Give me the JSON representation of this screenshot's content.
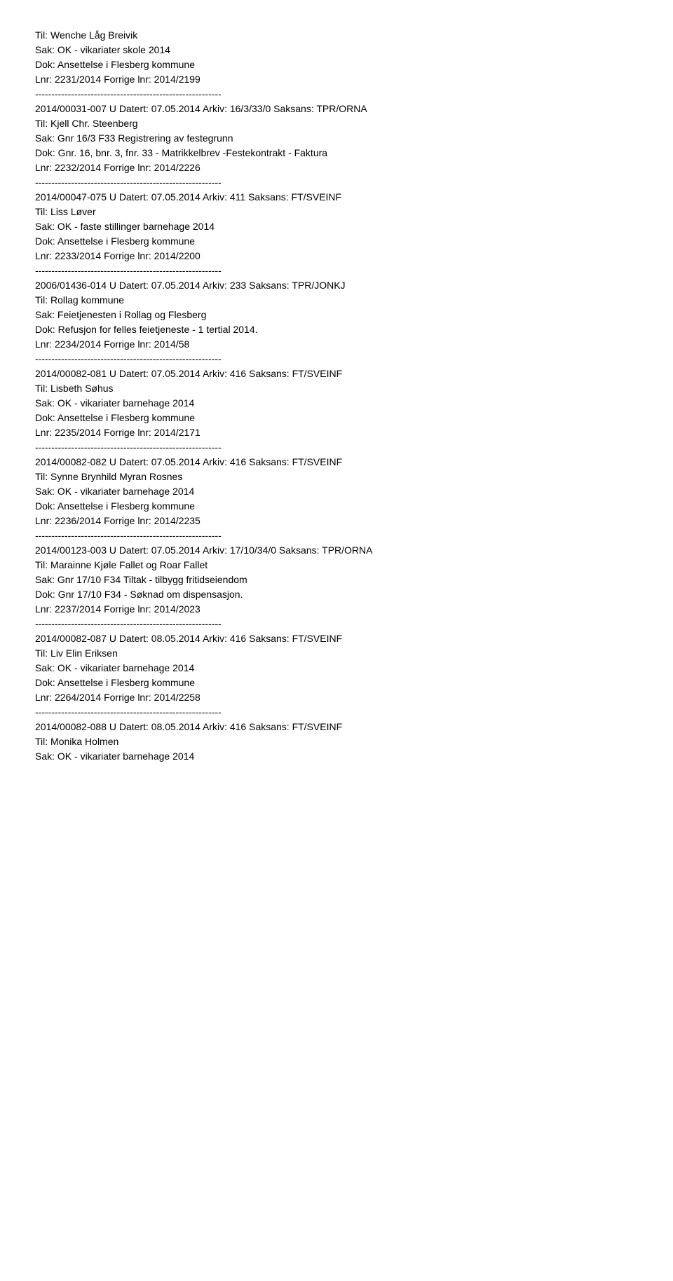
{
  "entries": [
    {
      "lines": [
        "Til: Wenche Låg Breivik",
        "Sak: OK - vikariater skole 2014",
        "Dok: Ansettelse i Flesberg kommune",
        "Lnr: 2231/2014   Forrige lnr: 2014/2199"
      ],
      "separator": "---------------------------------------------------------"
    },
    {
      "header": "2014/00031-007 U   Datert: 07.05.2014   Arkiv: 16/3/33/0   Saksans: TPR/ORNA",
      "lines": [
        "Til: Kjell Chr. Steenberg",
        "Sak: Gnr 16/3 F33 Registrering av festegrunn",
        "Dok: Gnr. 16, bnr. 3, fnr. 33 - Matrikkelbrev  -Festekontrakt - Faktura",
        "Lnr: 2232/2014   Forrige lnr: 2014/2226"
      ],
      "separator": "---------------------------------------------------------"
    },
    {
      "header": "2014/00047-075 U   Datert: 07.05.2014   Arkiv: 411   Saksans: FT/SVEINF",
      "lines": [
        "Til: Liss Løver",
        "Sak: OK - faste stillinger barnehage 2014",
        "Dok: Ansettelse i Flesberg kommune",
        "Lnr: 2233/2014   Forrige lnr: 2014/2200"
      ],
      "separator": "---------------------------------------------------------"
    },
    {
      "header": "2006/01436-014 U   Datert: 07.05.2014   Arkiv: 233   Saksans: TPR/JONKJ",
      "lines": [
        "Til: Rollag kommune",
        "Sak: Feietjenesten i Rollag og Flesberg",
        "Dok: Refusjon for felles feietjeneste - 1 tertial  2014.",
        "Lnr: 2234/2014   Forrige lnr: 2014/58"
      ],
      "separator": "---------------------------------------------------------"
    },
    {
      "header": "2014/00082-081 U   Datert: 07.05.2014   Arkiv: 416   Saksans: FT/SVEINF",
      "lines": [
        "Til: Lisbeth Søhus",
        "Sak: OK - vikariater barnehage 2014",
        "Dok: Ansettelse i Flesberg kommune",
        "Lnr: 2235/2014   Forrige lnr: 2014/2171"
      ],
      "separator": "---------------------------------------------------------"
    },
    {
      "header": "2014/00082-082 U   Datert: 07.05.2014   Arkiv: 416   Saksans: FT/SVEINF",
      "lines": [
        "Til: Synne Brynhild Myran Rosnes",
        "Sak: OK - vikariater barnehage 2014",
        "Dok: Ansettelse i Flesberg kommune",
        "Lnr: 2236/2014   Forrige lnr: 2014/2235"
      ],
      "separator": "---------------------------------------------------------"
    },
    {
      "header": "2014/00123-003 U   Datert: 07.05.2014   Arkiv: 17/10/34/0   Saksans: TPR/ORNA",
      "lines": [
        "Til: Marainne Kjøle Fallet og Roar Fallet",
        "Sak: Gnr 17/10 F34 Tiltak - tilbygg fritidseiendom",
        "Dok: Gnr 17/10 F34 - Søknad om dispensasjon.",
        "Lnr: 2237/2014   Forrige lnr: 2014/2023"
      ],
      "separator": "---------------------------------------------------------"
    },
    {
      "header": "2014/00082-087 U   Datert: 08.05.2014   Arkiv: 416   Saksans: FT/SVEINF",
      "lines": [
        "Til: Liv Elin Eriksen",
        "Sak: OK - vikariater barnehage 2014",
        "Dok: Ansettelse i Flesberg kommune",
        "Lnr: 2264/2014   Forrige lnr: 2014/2258"
      ],
      "separator": "---------------------------------------------------------"
    },
    {
      "header": "2014/00082-088 U   Datert: 08.05.2014   Arkiv: 416   Saksans: FT/SVEINF",
      "lines": [
        "Til: Monika Holmen",
        "Sak: OK - vikariater barnehage 2014"
      ]
    }
  ]
}
